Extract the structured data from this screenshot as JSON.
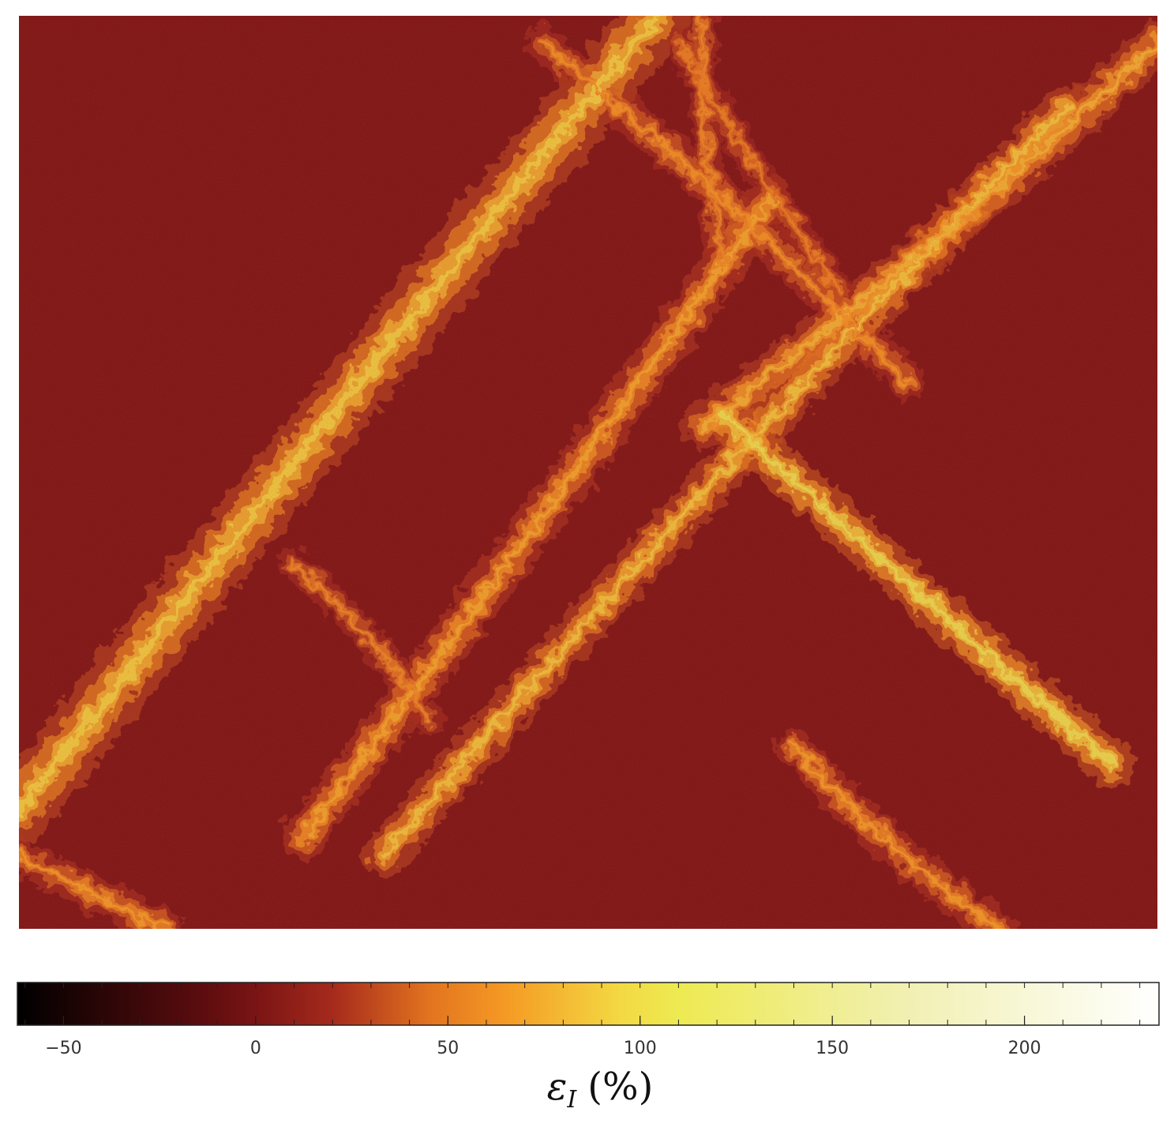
{
  "chart_data": {
    "type": "heatmap",
    "title": "",
    "description_of_field": "strain map with crossing shear bands",
    "colormap": {
      "name": "afmhot-like",
      "stops": [
        {
          "value": -62,
          "color": "#000000"
        },
        {
          "value": -15,
          "color": "#5a0c0e"
        },
        {
          "value": 0,
          "color": "#7a1414"
        },
        {
          "value": 20,
          "color": "#a52a1c"
        },
        {
          "value": 45,
          "color": "#e2731f"
        },
        {
          "value": 65,
          "color": "#f59a24"
        },
        {
          "value": 95,
          "color": "#f3d943"
        },
        {
          "value": 110,
          "color": "#eeea52"
        },
        {
          "value": 170,
          "color": "#f1f0b3"
        },
        {
          "value": 235,
          "color": "#ffffff"
        }
      ]
    },
    "colorbar": {
      "label_main": "ε",
      "label_sub": "I",
      "label_unit": "(%)",
      "range": [
        -62,
        235
      ],
      "ticks": [
        -50,
        0,
        50,
        100,
        150,
        200
      ],
      "tick_labels": [
        "−50",
        "0",
        "50",
        "100",
        "150",
        "200"
      ],
      "minor_tick_step": 10
    },
    "background_value": 0,
    "bands": [
      {
        "from": [
          0.0,
          0.87
        ],
        "to": [
          0.56,
          0.0
        ],
        "peak_value": 95,
        "width": 0.045
      },
      {
        "from": [
          0.25,
          0.9
        ],
        "to": [
          0.66,
          0.2
        ],
        "peak_value": 75,
        "width": 0.03
      },
      {
        "from": [
          0.32,
          0.92
        ],
        "to": [
          0.92,
          0.1
        ],
        "peak_value": 90,
        "width": 0.03
      },
      {
        "from": [
          0.6,
          0.45
        ],
        "to": [
          1.0,
          0.03
        ],
        "peak_value": 80,
        "width": 0.03
      },
      {
        "from": [
          0.62,
          0.44
        ],
        "to": [
          0.96,
          0.82
        ],
        "peak_value": 110,
        "width": 0.03
      },
      {
        "from": [
          0.46,
          0.03
        ],
        "to": [
          0.78,
          0.4
        ],
        "peak_value": 65,
        "width": 0.025
      },
      {
        "from": [
          0.68,
          0.8
        ],
        "to": [
          0.86,
          1.0
        ],
        "peak_value": 70,
        "width": 0.025
      },
      {
        "from": [
          0.24,
          0.6
        ],
        "to": [
          0.36,
          0.77
        ],
        "peak_value": 60,
        "width": 0.02
      },
      {
        "from": [
          0.6,
          0.0
        ],
        "to": [
          0.62,
          0.28
        ],
        "peak_value": 60,
        "width": 0.02
      },
      {
        "from": [
          0.0,
          0.92
        ],
        "to": [
          0.13,
          1.0
        ],
        "peak_value": 70,
        "width": 0.025
      },
      {
        "from": [
          0.58,
          0.03
        ],
        "to": [
          0.72,
          0.3
        ],
        "peak_value": 55,
        "width": 0.02
      }
    ]
  }
}
